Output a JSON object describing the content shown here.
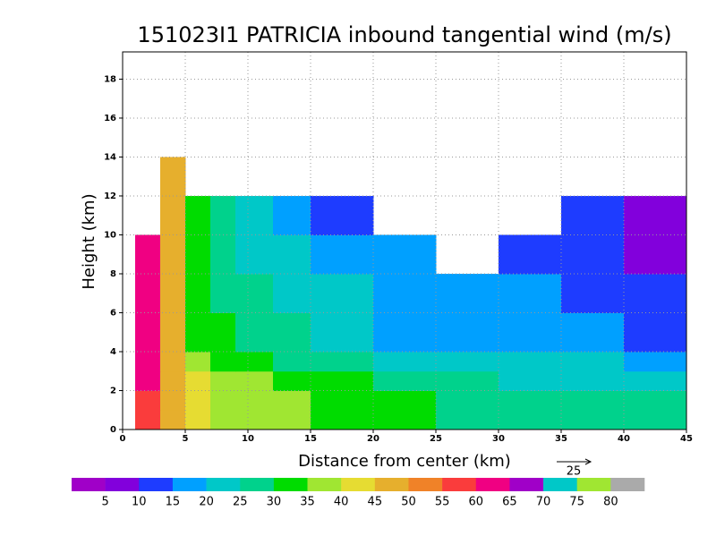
{
  "chart_data": {
    "type": "heatmap",
    "title": "151023I1 PATRICIA inbound tangential wind (m/s)",
    "x_label": "Distance from center (km)",
    "y_label": "Height (km)",
    "x_edges": [
      1,
      3,
      5,
      7,
      9,
      12,
      15,
      20,
      25,
      30,
      35,
      40,
      45
    ],
    "y_edges": [
      0,
      1,
      2,
      3,
      4,
      6,
      8,
      10,
      12,
      14
    ],
    "values": [
      [
        55,
        45,
        40,
        38,
        36,
        35,
        34,
        30,
        28,
        27,
        25,
        25
      ],
      [
        58,
        45,
        40,
        38,
        36,
        35,
        33,
        30,
        28,
        27,
        26,
        25
      ],
      [
        60,
        45,
        40,
        37,
        35,
        33,
        30,
        27,
        25,
        24,
        23,
        22
      ],
      [
        62,
        45,
        36,
        32,
        30,
        28,
        25,
        22,
        20,
        22,
        20,
        18
      ],
      [
        62,
        45,
        34,
        30,
        27,
        25,
        22,
        18,
        17,
        18,
        15,
        12
      ],
      [
        62,
        45,
        33,
        28,
        25,
        22,
        20,
        16,
        15,
        15,
        13,
        10
      ],
      [
        62,
        45,
        32,
        26,
        23,
        20,
        17,
        15,
        null,
        14,
        12,
        9
      ],
      [
        null,
        45,
        32,
        25,
        20,
        17,
        14,
        null,
        null,
        null,
        10,
        8
      ],
      [
        null,
        47,
        null,
        null,
        null,
        null,
        null,
        null,
        null,
        null,
        null,
        null
      ]
    ],
    "xlim": [
      0,
      45
    ],
    "ylim": [
      0,
      19.4
    ],
    "xticks": [
      0,
      5,
      10,
      15,
      20,
      25,
      30,
      35,
      40,
      45
    ],
    "yticks": [
      0,
      2,
      4,
      6,
      8,
      10,
      12,
      14,
      16,
      18
    ],
    "grid": true,
    "levels": [
      5,
      10,
      15,
      20,
      25,
      30,
      35,
      40,
      45,
      50,
      55,
      60,
      65,
      70,
      75,
      80
    ],
    "colors": [
      "#a000c8",
      "#8200dc",
      "#1e3cff",
      "#00a0ff",
      "#00c8c8",
      "#00d28c",
      "#00dc00",
      "#a0e632",
      "#e6dc32",
      "#e6af2d",
      "#f08228",
      "#fa3c3c",
      "#f00082",
      "#a000c8",
      "#00c8c8",
      "#a0e632",
      "#aaaaaa"
    ],
    "vector_scale_label": 25
  }
}
